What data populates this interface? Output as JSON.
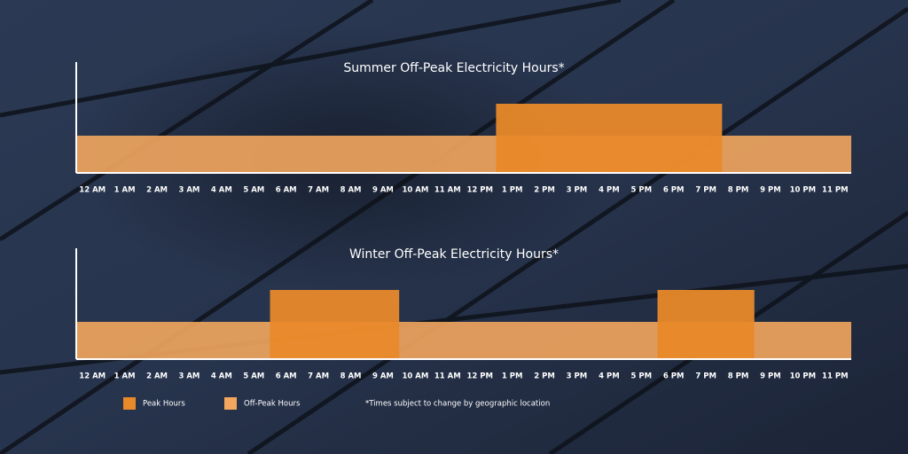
{
  "chart_data": [
    {
      "type": "timeline",
      "title": "Summer Off-Peak Electricity Hours*",
      "categories": [
        "12 AM",
        "1 AM",
        "2 AM",
        "3 AM",
        "4 AM",
        "5 AM",
        "6 AM",
        "7 AM",
        "8 AM",
        "9 AM",
        "10 AM",
        "11 AM",
        "12 PM",
        "1 PM",
        "2 PM",
        "3 PM",
        "4 PM",
        "5 PM",
        "6 PM",
        "7 PM",
        "8 PM",
        "9 PM",
        "10 PM",
        "11 PM"
      ],
      "xlim": [
        0,
        24
      ],
      "peak_ranges": [
        [
          13,
          20
        ]
      ]
    },
    {
      "type": "timeline",
      "title": "Winter Off-Peak Electricity Hours*",
      "categories": [
        "12 AM",
        "1 AM",
        "2 AM",
        "3 AM",
        "4 AM",
        "5 AM",
        "6 AM",
        "7 AM",
        "8 AM",
        "9 AM",
        "10 AM",
        "11 AM",
        "12 PM",
        "1 PM",
        "2 PM",
        "3 PM",
        "4 PM",
        "5 PM",
        "6 PM",
        "7 PM",
        "8 PM",
        "9 PM",
        "10 PM",
        "11 PM"
      ],
      "xlim": [
        0,
        24
      ],
      "peak_ranges": [
        [
          6,
          10
        ],
        [
          18,
          21
        ]
      ]
    }
  ],
  "legend": [
    {
      "name": "Peak Hours",
      "color": "#e8892a"
    },
    {
      "name": "Off-Peak Hours",
      "color": "#f2a65e"
    }
  ],
  "note": "*Times subject to change by geographic location"
}
